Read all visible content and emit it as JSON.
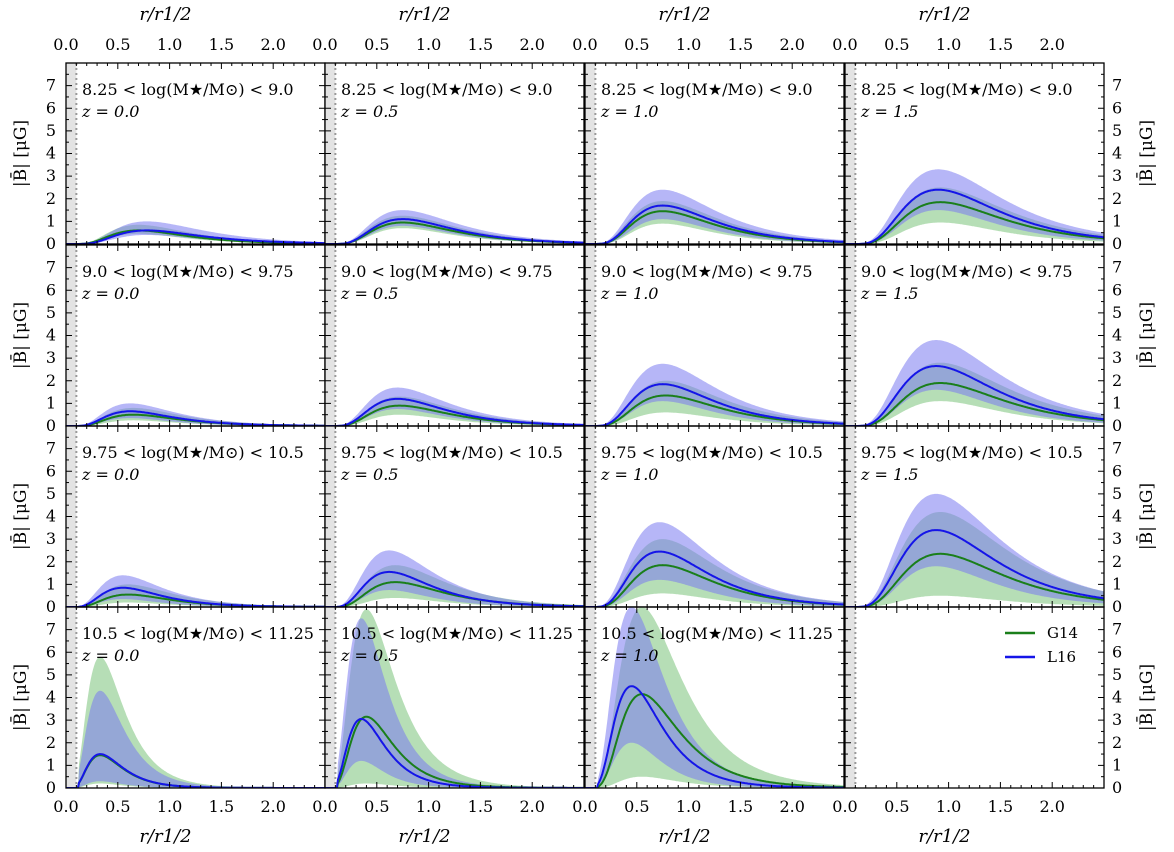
{
  "chart_data": {
    "type": "line",
    "layout": "4x4 grid",
    "xlabel": "r/r1/2",
    "ylabel": "|B̄| [μG]",
    "xlim": [
      0.0,
      2.5
    ],
    "ylim": [
      0,
      8
    ],
    "x_ticks": [
      "0.0",
      "0.5",
      "1.0",
      "1.5",
      "2.0"
    ],
    "y_ticks": [
      "0",
      "1",
      "2",
      "3",
      "4",
      "5",
      "6",
      "7"
    ],
    "grid": false,
    "legend": {
      "location": "bottom-right panel",
      "entries": [
        {
          "name": "G14",
          "color": "#1a7f1a"
        },
        {
          "name": "L16",
          "color": "#1515e8"
        }
      ]
    },
    "colors": {
      "G14": "#1a7f1a",
      "L16": "#1515e8",
      "G14_band": "#8fcc8f",
      "L16_band": "#7a7af0",
      "overlap_band": "#6f8cc0",
      "inner_shade": "#e3e3e3"
    },
    "mass_bins": [
      "8.25 < log(M★/M⊙) < 9.0",
      "9.0 < log(M★/M⊙) < 9.75",
      "9.75 < log(M★/M⊙) < 10.5",
      "10.5 < log(M★/M⊙) < 11.25"
    ],
    "redshifts": [
      "z = 0.0",
      "z = 0.5",
      "z = 1.0",
      "z = 1.5"
    ],
    "panels": [
      {
        "row": 0,
        "col": 0,
        "mass": "8.25 < log(M★/M⊙) < 9.0",
        "z": "z = 0.0",
        "shape": "peak",
        "G14": {
          "peak": 0.6,
          "x0": 0.7,
          "lo": 0.45,
          "hi": 0.85
        },
        "L16": {
          "peak": 0.6,
          "x0": 0.78,
          "lo": 0.4,
          "hi": 1.0
        }
      },
      {
        "row": 0,
        "col": 1,
        "mass": "8.25 < log(M★/M⊙) < 9.0",
        "z": "z = 0.5",
        "shape": "peak",
        "G14": {
          "peak": 0.95,
          "x0": 0.75,
          "lo": 0.7,
          "hi": 1.25
        },
        "L16": {
          "peak": 1.1,
          "x0": 0.75,
          "lo": 0.8,
          "hi": 1.5
        }
      },
      {
        "row": 0,
        "col": 2,
        "mass": "8.25 < log(M★/M⊙) < 9.0",
        "z": "z = 1.0",
        "shape": "peak",
        "G14": {
          "peak": 1.45,
          "x0": 0.75,
          "lo": 0.9,
          "hi": 1.9
        },
        "L16": {
          "peak": 1.7,
          "x0": 0.75,
          "lo": 1.1,
          "hi": 2.4
        }
      },
      {
        "row": 0,
        "col": 3,
        "mass": "8.25 < log(M★/M⊙) < 9.0",
        "z": "z = 1.5",
        "shape": "peak",
        "G14": {
          "peak": 1.85,
          "x0": 0.92,
          "lo": 0.95,
          "hi": 2.5
        },
        "L16": {
          "peak": 2.4,
          "x0": 0.9,
          "lo": 1.5,
          "hi": 3.3
        }
      },
      {
        "row": 1,
        "col": 0,
        "mass": "9.0 < log(M★/M⊙) < 9.75",
        "z": "z = 0.0",
        "shape": "peak",
        "G14": {
          "peak": 0.5,
          "x0": 0.65,
          "lo": 0.25,
          "hi": 0.8
        },
        "L16": {
          "peak": 0.65,
          "x0": 0.62,
          "lo": 0.35,
          "hi": 1.0
        }
      },
      {
        "row": 1,
        "col": 1,
        "mass": "9.0 < log(M★/M⊙) < 9.75",
        "z": "z = 0.5",
        "shape": "peak",
        "G14": {
          "peak": 0.9,
          "x0": 0.72,
          "lo": 0.5,
          "hi": 1.3
        },
        "L16": {
          "peak": 1.2,
          "x0": 0.7,
          "lo": 0.75,
          "hi": 1.7
        }
      },
      {
        "row": 1,
        "col": 2,
        "mass": "9.0 < log(M★/M⊙) < 9.75",
        "z": "z = 1.0",
        "shape": "peak",
        "G14": {
          "peak": 1.35,
          "x0": 0.78,
          "lo": 0.6,
          "hi": 2.0
        },
        "L16": {
          "peak": 1.85,
          "x0": 0.75,
          "lo": 1.1,
          "hi": 2.75
        }
      },
      {
        "row": 1,
        "col": 3,
        "mass": "9.0 < log(M★/M⊙) < 9.75",
        "z": "z = 1.5",
        "shape": "peak",
        "G14": {
          "peak": 1.9,
          "x0": 0.92,
          "lo": 1.1,
          "hi": 2.8
        },
        "L16": {
          "peak": 2.65,
          "x0": 0.88,
          "lo": 1.6,
          "hi": 3.8
        }
      },
      {
        "row": 2,
        "col": 0,
        "mass": "9.75 < log(M★/M⊙) < 10.5",
        "z": "z = 0.0",
        "shape": "peak",
        "G14": {
          "peak": 0.55,
          "x0": 0.6,
          "lo": 0.2,
          "hi": 1.0
        },
        "L16": {
          "peak": 0.85,
          "x0": 0.55,
          "lo": 0.35,
          "hi": 1.4
        }
      },
      {
        "row": 2,
        "col": 1,
        "mass": "9.75 < log(M★/M⊙) < 10.5",
        "z": "z = 0.5",
        "shape": "peak",
        "G14": {
          "peak": 1.1,
          "x0": 0.68,
          "lo": 0.4,
          "hi": 1.85
        },
        "L16": {
          "peak": 1.55,
          "x0": 0.62,
          "lo": 0.75,
          "hi": 2.5
        }
      },
      {
        "row": 2,
        "col": 2,
        "mass": "9.75 < log(M★/M⊙) < 10.5",
        "z": "z = 1.0",
        "shape": "peak",
        "G14": {
          "peak": 1.85,
          "x0": 0.75,
          "lo": 0.6,
          "hi": 3.0
        },
        "L16": {
          "peak": 2.45,
          "x0": 0.72,
          "lo": 1.2,
          "hi": 3.75
        }
      },
      {
        "row": 2,
        "col": 3,
        "mass": "9.75 < log(M★/M⊙) < 10.5",
        "z": "z = 1.5",
        "shape": "peak",
        "G14": {
          "peak": 2.35,
          "x0": 0.92,
          "lo": 0.5,
          "hi": 4.2
        },
        "L16": {
          "peak": 3.4,
          "x0": 0.88,
          "lo": 1.8,
          "hi": 5.0
        }
      },
      {
        "row": 3,
        "col": 0,
        "mass": "10.5 < log(M★/M⊙) < 11.25",
        "z": "z = 0.0",
        "shape": "peak",
        "G14": {
          "peak": 1.45,
          "x0": 0.33,
          "lo": 0.2,
          "hi": 5.8
        },
        "L16": {
          "peak": 1.5,
          "x0": 0.33,
          "lo": 0.3,
          "hi": 4.3
        }
      },
      {
        "row": 3,
        "col": 1,
        "mass": "10.5 < log(M★/M⊙) < 11.25",
        "z": "z = 0.5",
        "shape": "peak",
        "G14": {
          "peak": 3.15,
          "x0": 0.4,
          "lo": 0.2,
          "hi": 7.9
        },
        "L16": {
          "peak": 3.05,
          "x0": 0.35,
          "lo": 1.2,
          "hi": 7.5
        }
      },
      {
        "row": 3,
        "col": 2,
        "mass": "10.5 < log(M★/M⊙) < 11.25",
        "z": "z = 1.0",
        "shape": "peak",
        "G14": {
          "peak": 4.15,
          "x0": 0.55,
          "lo": 0.5,
          "hi": 8.0
        },
        "L16": {
          "peak": 4.5,
          "x0": 0.45,
          "lo": 2.0,
          "hi": 8.0
        }
      },
      {
        "row": 3,
        "col": 3,
        "mass": "",
        "z": "",
        "legend": true
      }
    ]
  }
}
